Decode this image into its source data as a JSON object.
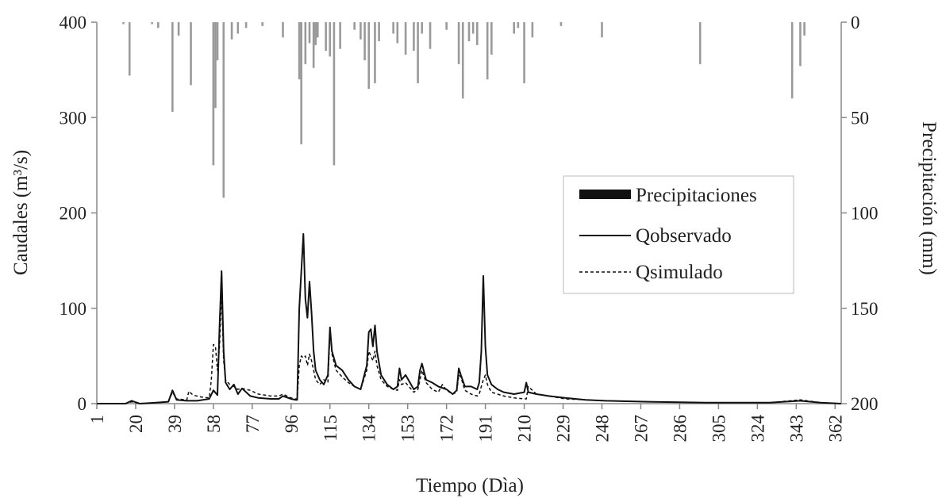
{
  "chart_data": {
    "type": "line",
    "xlabel": "Tiempo (Dìa)",
    "ylabel": "Caudales (m³/s)",
    "y2label": "Precipitación (mm)",
    "xlim": [
      1,
      365
    ],
    "ylim": [
      0,
      400
    ],
    "y2lim": [
      200,
      0
    ],
    "y2_inverted": true,
    "x_ticks": [
      1,
      20,
      39,
      58,
      77,
      96,
      115,
      134,
      153,
      172,
      191,
      210,
      229,
      248,
      267,
      286,
      305,
      324,
      343,
      362
    ],
    "y_ticks": [
      0,
      100,
      200,
      300,
      400
    ],
    "y2_ticks": [
      0,
      50,
      100,
      150,
      200
    ],
    "grid": false,
    "legend_position": "center-right",
    "colors": {
      "precip": "#9a9a9a",
      "observed": "#111111",
      "simulated": "#111111",
      "axis": "#888888"
    },
    "precip_series": {
      "name": "Precipitaciones",
      "x": [
        14,
        17,
        28,
        31,
        38,
        41,
        47,
        58,
        59,
        60,
        63,
        67,
        70,
        74,
        82,
        92,
        100,
        101,
        103,
        105,
        107,
        108,
        109,
        113,
        115,
        117,
        120,
        127,
        130,
        132,
        134,
        137,
        139,
        146,
        148,
        152,
        156,
        158,
        160,
        164,
        172,
        178,
        180,
        183,
        185,
        187,
        192,
        194,
        205,
        207,
        210,
        214,
        228,
        248,
        296,
        341,
        345,
        347
      ],
      "values": [
        1,
        28,
        1,
        3,
        47,
        7,
        33,
        75,
        45,
        20,
        92,
        9,
        6,
        3,
        2,
        8,
        30,
        64,
        22,
        11,
        24,
        12,
        8,
        15,
        18,
        75,
        14,
        4,
        9,
        20,
        35,
        32,
        10,
        6,
        11,
        17,
        15,
        32,
        6,
        14,
        4,
        22,
        40,
        10,
        6,
        12,
        30,
        17,
        6,
        3,
        32,
        8,
        2,
        8,
        22,
        40,
        23,
        7
      ]
    },
    "observed_series": {
      "name": "Qobservado",
      "x": [
        1,
        15,
        18,
        22,
        30,
        36,
        38,
        40,
        45,
        50,
        56,
        58,
        60,
        61,
        62,
        63,
        64,
        66,
        68,
        70,
        72,
        76,
        80,
        86,
        90,
        92,
        96,
        98,
        99,
        100,
        102,
        103,
        104,
        105,
        106,
        107,
        108,
        110,
        112,
        114,
        115,
        116,
        118,
        121,
        124,
        127,
        130,
        133,
        134,
        135,
        136,
        137,
        138,
        140,
        143,
        146,
        148,
        149,
        150,
        152,
        156,
        158,
        159,
        160,
        162,
        165,
        168,
        172,
        175,
        177,
        178,
        179,
        181,
        184,
        187,
        188,
        189,
        190,
        191,
        192,
        194,
        197,
        200,
        205,
        210,
        211,
        212,
        216,
        222,
        230,
        240,
        250,
        270,
        300,
        330,
        345,
        355,
        365
      ],
      "values": [
        0,
        0,
        3,
        0,
        1,
        2,
        14,
        4,
        3,
        3,
        5,
        14,
        9,
        80,
        139,
        55,
        22,
        15,
        20,
        10,
        16,
        8,
        6,
        5,
        5,
        8,
        5,
        4,
        4,
        100,
        178,
        110,
        90,
        128,
        95,
        55,
        35,
        25,
        20,
        30,
        80,
        55,
        40,
        35,
        25,
        18,
        15,
        40,
        75,
        78,
        60,
        82,
        55,
        30,
        20,
        15,
        18,
        37,
        25,
        30,
        15,
        18,
        35,
        42,
        25,
        22,
        18,
        15,
        10,
        14,
        37,
        30,
        18,
        18,
        15,
        22,
        55,
        134,
        60,
        30,
        20,
        15,
        12,
        10,
        12,
        22,
        12,
        10,
        8,
        6,
        4,
        3,
        2,
        1,
        1,
        3,
        1,
        0
      ]
    },
    "simulated_series": {
      "name": "Qsimulado",
      "x": [
        1,
        15,
        18,
        22,
        30,
        36,
        38,
        40,
        45,
        46,
        48,
        52,
        56,
        57,
        58,
        59,
        60,
        61,
        62,
        63,
        64,
        66,
        68,
        70,
        72,
        76,
        80,
        86,
        90,
        92,
        96,
        98,
        99,
        100,
        101,
        102,
        103,
        104,
        105,
        106,
        107,
        108,
        110,
        112,
        114,
        115,
        116,
        118,
        121,
        124,
        127,
        130,
        133,
        134,
        135,
        136,
        137,
        138,
        140,
        143,
        146,
        148,
        149,
        150,
        152,
        156,
        158,
        159,
        160,
        162,
        165,
        168,
        170,
        172,
        175,
        177,
        178,
        179,
        181,
        184,
        187,
        188,
        189,
        190,
        191,
        192,
        194,
        197,
        200,
        205,
        210,
        211,
        212,
        216,
        222,
        230,
        240,
        250,
        270,
        300,
        330,
        345,
        355,
        365
      ],
      "values": [
        0,
        0,
        2,
        0,
        1,
        2,
        12,
        5,
        4,
        13,
        9,
        7,
        6,
        25,
        62,
        60,
        35,
        60,
        115,
        45,
        25,
        20,
        18,
        15,
        16,
        14,
        10,
        8,
        8,
        10,
        6,
        5,
        5,
        40,
        50,
        48,
        50,
        40,
        52,
        45,
        35,
        25,
        20,
        25,
        22,
        75,
        52,
        35,
        28,
        22,
        18,
        15,
        35,
        55,
        50,
        45,
        55,
        40,
        25,
        18,
        15,
        14,
        25,
        20,
        22,
        12,
        15,
        25,
        35,
        22,
        15,
        12,
        20,
        14,
        10,
        12,
        30,
        28,
        14,
        10,
        8,
        10,
        18,
        25,
        30,
        20,
        12,
        10,
        8,
        6,
        5,
        5,
        18,
        10,
        8,
        5,
        4,
        3,
        2,
        1,
        1,
        4,
        1,
        0
      ]
    }
  }
}
